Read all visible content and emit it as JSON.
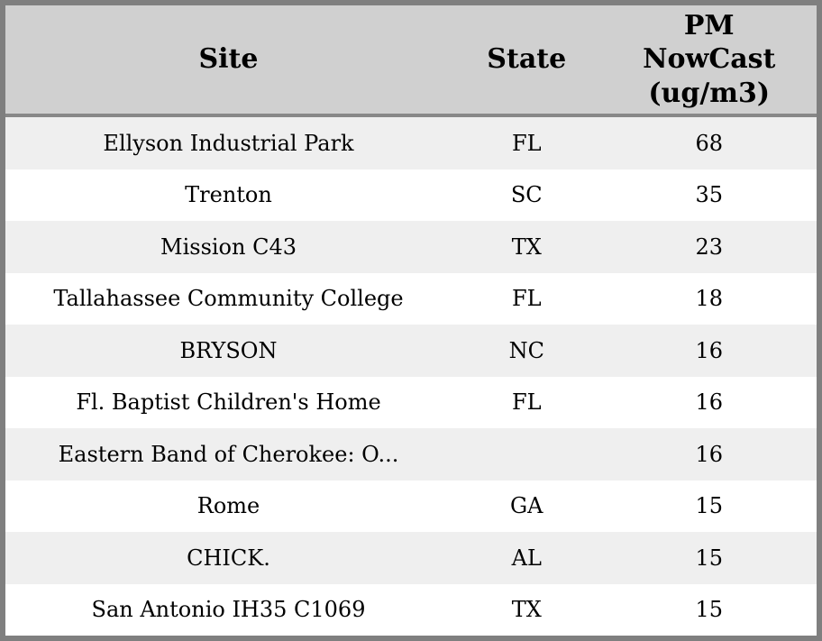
{
  "colors": {
    "outer_border": "#7f7f7f",
    "header_bg": "#d0d0d0",
    "header_divider": "#888888",
    "row_stripe": "#efefef",
    "row_bg": "#ffffff",
    "text": "#000000"
  },
  "table": {
    "columns": [
      {
        "label": "Site"
      },
      {
        "label": "State"
      },
      {
        "label": "PM\nNowCast\n(ug/m3)"
      }
    ],
    "rows": [
      {
        "site": "Ellyson Industrial Park",
        "state": "FL",
        "pm": "68"
      },
      {
        "site": "Trenton",
        "state": "SC",
        "pm": "35"
      },
      {
        "site": "Mission C43",
        "state": "TX",
        "pm": "23"
      },
      {
        "site": "Tallahassee Community College",
        "state": "FL",
        "pm": "18"
      },
      {
        "site": "BRYSON",
        "state": "NC",
        "pm": "16"
      },
      {
        "site": "Fl. Baptist Children's Home",
        "state": "FL",
        "pm": "16"
      },
      {
        "site": "Eastern Band of Cherokee: O...",
        "state": "",
        "pm": "16"
      },
      {
        "site": "Rome",
        "state": "GA",
        "pm": "15"
      },
      {
        "site": "CHICK.",
        "state": "AL",
        "pm": "15"
      },
      {
        "site": "San Antonio IH35 C1069",
        "state": "TX",
        "pm": "15"
      }
    ]
  }
}
